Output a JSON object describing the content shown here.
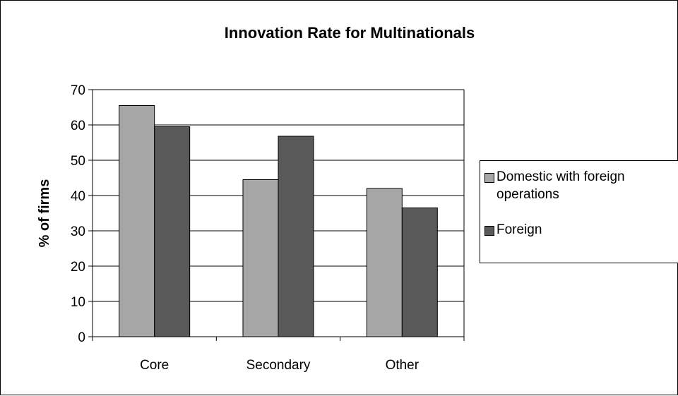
{
  "chart_data": {
    "type": "bar",
    "title": "Innovation Rate for Multinationals",
    "xlabel": "",
    "ylabel": "% of firms",
    "categories": [
      "Core",
      "Secondary",
      "Other"
    ],
    "series": [
      {
        "name": "Domestic with foreign operations",
        "values": [
          65.5,
          44.5,
          42
        ],
        "color": "#a6a6a6"
      },
      {
        "name": "Foreign",
        "values": [
          59.5,
          56.8,
          36.5
        ],
        "color": "#595959"
      }
    ],
    "ylim": [
      0,
      70
    ],
    "yticks": [
      0,
      10,
      20,
      30,
      40,
      50,
      60,
      70
    ],
    "grid": true,
    "legend_position": "right"
  }
}
